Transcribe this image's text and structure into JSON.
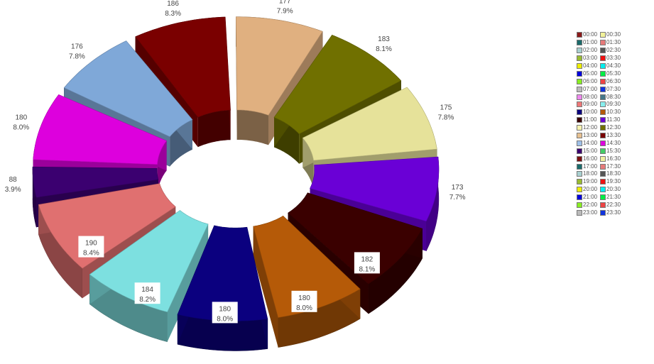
{
  "chart_data": {
    "type": "pie",
    "variant": "3d-exploded-donut",
    "slices": [
      {
        "value": 173,
        "label": "173",
        "percent": "7.7%",
        "color": "#6a00d6"
      },
      {
        "value": 182,
        "label": "182",
        "percent": "8.1%",
        "color": "#3a0000"
      },
      {
        "value": 180,
        "label": "180",
        "percent": "8.0%",
        "color": "#b55a08"
      },
      {
        "value": 180,
        "label": "180",
        "percent": "8.0%",
        "color": "#0b007f"
      },
      {
        "value": 184,
        "label": "184",
        "percent": "8.2%",
        "color": "#7de0e0"
      },
      {
        "value": 190,
        "label": "190",
        "percent": "8.4%",
        "color": "#e07070"
      },
      {
        "value": 88,
        "label": "88",
        "percent": "3.9%",
        "color": "#3b0070"
      },
      {
        "value": 180,
        "label": "180",
        "percent": "8.0%",
        "color": "#dd00dd"
      },
      {
        "value": 176,
        "label": "176",
        "percent": "7.8%",
        "color": "#7fa8d8"
      },
      {
        "value": 186,
        "label": "186",
        "percent": "8.3%",
        "color": "#7a0000"
      },
      {
        "value": 177,
        "label": "177",
        "percent": "7.9%",
        "color": "#e0b080"
      },
      {
        "value": 183,
        "label": "183",
        "percent": "8.1%",
        "color": "#707000"
      },
      {
        "value": 175,
        "label": "175",
        "percent": "7.8%",
        "color": "#e6e29a"
      }
    ],
    "legend": {
      "placement": "right",
      "entries": [
        {
          "label": "00:00",
          "color": "#8b1a1a"
        },
        {
          "label": "00:30",
          "color": "#f2f29a"
        },
        {
          "label": "01:00",
          "color": "#1a6b6b"
        },
        {
          "label": "01:30",
          "color": "#e67a7a"
        },
        {
          "label": "02:00",
          "color": "#a8d0d0"
        },
        {
          "label": "02:30",
          "color": "#555555"
        },
        {
          "label": "03:00",
          "color": "#99bb33"
        },
        {
          "label": "03:30",
          "color": "#ee1111"
        },
        {
          "label": "04:00",
          "color": "#eeee00"
        },
        {
          "label": "04:30",
          "color": "#00eeee"
        },
        {
          "label": "05:00",
          "color": "#0000dd"
        },
        {
          "label": "05:30",
          "color": "#00ee44"
        },
        {
          "label": "06:00",
          "color": "#88ee22"
        },
        {
          "label": "06:30",
          "color": "#ee4444"
        },
        {
          "label": "07:00",
          "color": "#bbbbbb"
        },
        {
          "label": "07:30",
          "color": "#1133dd"
        },
        {
          "label": "08:00",
          "color": "#ee88ee"
        },
        {
          "label": "08:30",
          "color": "#447788"
        },
        {
          "label": "09:00",
          "color": "#ee7777"
        },
        {
          "label": "09:30",
          "color": "#88eeee"
        },
        {
          "label": "10:00",
          "color": "#0b007f"
        },
        {
          "label": "10:30",
          "color": "#b55a08"
        },
        {
          "label": "11:00",
          "color": "#3a0000"
        },
        {
          "label": "11:30",
          "color": "#6a00d6"
        },
        {
          "label": "12:00",
          "color": "#f6f2b0"
        },
        {
          "label": "12:30",
          "color": "#707000"
        },
        {
          "label": "13:00",
          "color": "#e6c090"
        },
        {
          "label": "13:30",
          "color": "#7a0000"
        },
        {
          "label": "14:00",
          "color": "#9ec0e8"
        },
        {
          "label": "14:30",
          "color": "#dd00dd"
        },
        {
          "label": "15:00",
          "color": "#3b0070"
        },
        {
          "label": "15:30",
          "color": "#44cc66"
        },
        {
          "label": "16:00",
          "color": "#7a1010"
        },
        {
          "label": "16:30",
          "color": "#f0f0a0"
        },
        {
          "label": "17:00",
          "color": "#1a6b6b"
        },
        {
          "label": "17:30",
          "color": "#e67a7a"
        },
        {
          "label": "18:00",
          "color": "#a8d0d0"
        },
        {
          "label": "18:30",
          "color": "#555555"
        },
        {
          "label": "19:00",
          "color": "#99bb33"
        },
        {
          "label": "19:30",
          "color": "#ee1111"
        },
        {
          "label": "20:00",
          "color": "#eeee00"
        },
        {
          "label": "20:30",
          "color": "#00eeee"
        },
        {
          "label": "21:00",
          "color": "#0000dd"
        },
        {
          "label": "21:30",
          "color": "#00ee44"
        },
        {
          "label": "22:00",
          "color": "#88ee22"
        },
        {
          "label": "22:30",
          "color": "#ee4444"
        },
        {
          "label": "23:00",
          "color": "#bbbbbb"
        },
        {
          "label": "23:30",
          "color": "#1133dd"
        }
      ]
    }
  }
}
